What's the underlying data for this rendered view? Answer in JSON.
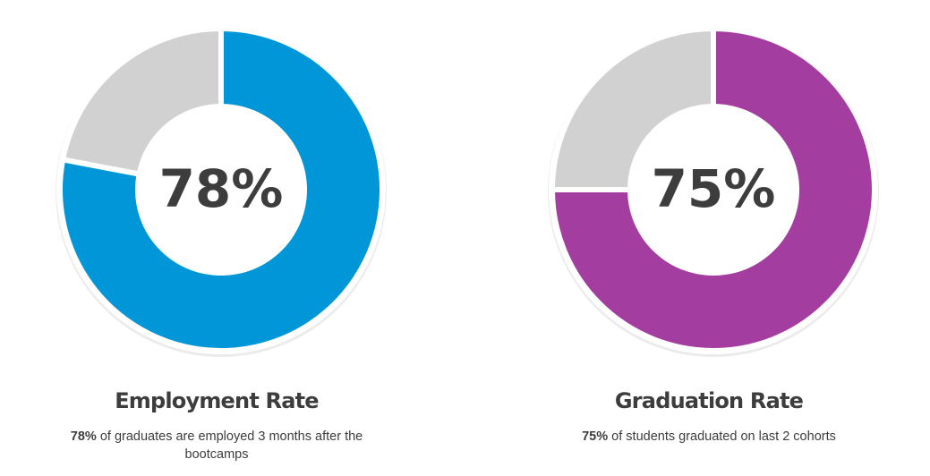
{
  "chart_data": [
    {
      "type": "pie",
      "variant": "donut",
      "values": [
        78,
        22
      ],
      "value_colors": [
        "#0096d8",
        "#d1d1d1"
      ],
      "center_label": "78%",
      "title": "Employment Rate",
      "description_bold": "78%",
      "description_rest": " of graduates are employed 3 months after the bootcamps"
    },
    {
      "type": "pie",
      "variant": "donut",
      "values": [
        75,
        25
      ],
      "value_colors": [
        "#a43da0",
        "#d1d1d1"
      ],
      "center_label": "75%",
      "title": "Graduation Rate",
      "description_bold": "75%",
      "description_rest": " of students graduated on last 2 cohorts"
    }
  ]
}
